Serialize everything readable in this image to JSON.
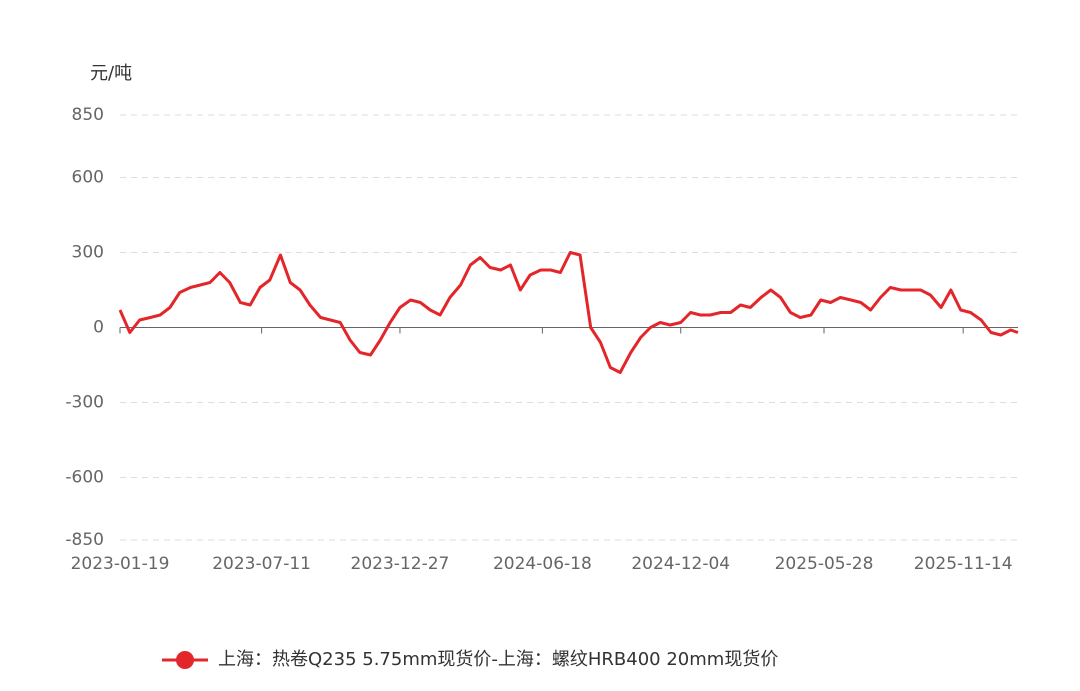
{
  "chart_data": {
    "type": "line",
    "y_label": "元/吨",
    "x": [
      "2023-01-19",
      "2023-01-31",
      "2023-02-12",
      "2023-02-25",
      "2023-03-09",
      "2023-03-21",
      "2023-04-02",
      "2023-04-15",
      "2023-04-27",
      "2023-05-09",
      "2023-05-21",
      "2023-06-02",
      "2023-06-15",
      "2023-06-27",
      "2023-07-09",
      "2023-07-21",
      "2023-08-03",
      "2023-08-15",
      "2023-08-27",
      "2023-09-08",
      "2023-09-21",
      "2023-10-03",
      "2023-10-15",
      "2023-10-27",
      "2023-11-08",
      "2023-11-21",
      "2023-12-03",
      "2023-12-15",
      "2023-12-27",
      "2024-01-09",
      "2024-01-21",
      "2024-02-02",
      "2024-02-14",
      "2024-02-26",
      "2024-03-10",
      "2024-03-22",
      "2024-04-03",
      "2024-04-15",
      "2024-04-28",
      "2024-05-10",
      "2024-05-22",
      "2024-06-03",
      "2024-06-16",
      "2024-06-28",
      "2024-07-10",
      "2024-07-22",
      "2024-08-03",
      "2024-08-16",
      "2024-08-28",
      "2024-09-09",
      "2024-09-21",
      "2024-10-04",
      "2024-10-16",
      "2024-10-28",
      "2024-11-09",
      "2024-11-21",
      "2024-12-04",
      "2024-12-16",
      "2024-12-28",
      "2025-01-09",
      "2025-01-22",
      "2025-02-03",
      "2025-02-15",
      "2025-02-27",
      "2025-03-12",
      "2025-03-24",
      "2025-04-05",
      "2025-04-17",
      "2025-04-29",
      "2025-05-12",
      "2025-05-24",
      "2025-06-05",
      "2025-06-17",
      "2025-06-30",
      "2025-07-12",
      "2025-07-24",
      "2025-08-05",
      "2025-08-17",
      "2025-08-30",
      "2025-09-11",
      "2025-09-23",
      "2025-10-05",
      "2025-10-18",
      "2025-10-30",
      "2025-11-11",
      "2025-11-23",
      "2025-12-06",
      "2025-12-18",
      "2025-12-30",
      "2026-01-11",
      "2026-01-20"
    ],
    "series": [
      {
        "name": "上海：热卷Q235 5.75mm现货价-上海：螺纹HRB400 20mm现货价",
        "color": "#e3262a",
        "values": [
          70,
          -20,
          30,
          40,
          50,
          80,
          140,
          160,
          170,
          180,
          220,
          180,
          100,
          90,
          160,
          190,
          290,
          180,
          150,
          90,
          40,
          30,
          20,
          -50,
          -100,
          -110,
          -50,
          20,
          80,
          110,
          100,
          70,
          50,
          120,
          170,
          250,
          280,
          240,
          230,
          250,
          150,
          210,
          230,
          230,
          220,
          300,
          290,
          0,
          -60,
          -160,
          -180,
          -100,
          -40,
          0,
          20,
          10,
          20,
          60,
          50,
          50,
          60,
          60,
          90,
          80,
          120,
          150,
          120,
          60,
          40,
          50,
          110,
          100,
          120,
          110,
          100,
          70,
          120,
          160,
          150,
          150,
          150,
          130,
          80,
          150,
          70,
          60,
          30,
          -20,
          -30,
          -10,
          -20
        ]
      }
    ],
    "xlim": [
      "2023-01-19",
      "2026-01-20"
    ],
    "xticks": [
      "2023-01-19",
      "2023-07-11",
      "2023-12-27",
      "2024-06-18",
      "2024-12-04",
      "2025-05-28",
      "2025-11-14"
    ],
    "ylim": [
      -850,
      850
    ],
    "yticks": [
      -850,
      -600,
      -300,
      0,
      300,
      600,
      850
    ],
    "grid": true
  }
}
